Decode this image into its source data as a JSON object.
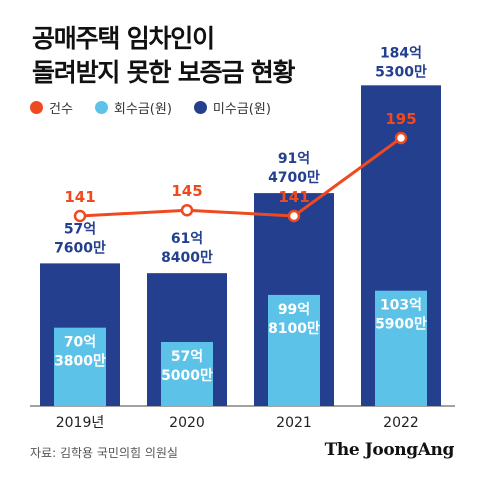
{
  "title_lines": [
    "공매주택 임차인이",
    "돌려받지 못한 보증금 현황"
  ],
  "colors": {
    "count": "#ef4a1f",
    "recovered": "#5dc2e8",
    "unrecovered": "#233f8e"
  },
  "legend": [
    {
      "label": "건수",
      "color": "#ef4a1f",
      "icon": "line-dot-icon"
    },
    {
      "label": "회수금(원)",
      "color": "#5dc2e8",
      "icon": "circle-icon"
    },
    {
      "label": "미수금(원)",
      "color": "#233f8e",
      "icon": "circle-icon"
    }
  ],
  "chart_data": {
    "type": "bar",
    "categories": [
      "2019년",
      "2020",
      "2021",
      "2022"
    ],
    "series": [
      {
        "name": "회수금(원)",
        "values": [
          7038,
          5750,
          9981,
          10359
        ],
        "labels": [
          [
            "70억",
            "3800만"
          ],
          [
            "57억",
            "5000만"
          ],
          [
            "99억",
            "8100만"
          ],
          [
            "103억",
            "5900만"
          ]
        ]
      },
      {
        "name": "미수금(원)",
        "values": [
          5776,
          6184,
          9147,
          18453
        ],
        "labels": [
          [
            "57억",
            "7600만"
          ],
          [
            "61억",
            "8400만"
          ],
          [
            "91억",
            "4700만"
          ],
          [
            "184억",
            "5300만"
          ]
        ]
      },
      {
        "name": "건수",
        "type": "line",
        "values": [
          141,
          145,
          141,
          195
        ],
        "labels": [
          "141",
          "145",
          "141",
          "195"
        ]
      }
    ],
    "legend_position": "top-left",
    "grid": false
  },
  "source": "자료: 김학용 국민의힘 의원실",
  "brand": "The JoongAng"
}
